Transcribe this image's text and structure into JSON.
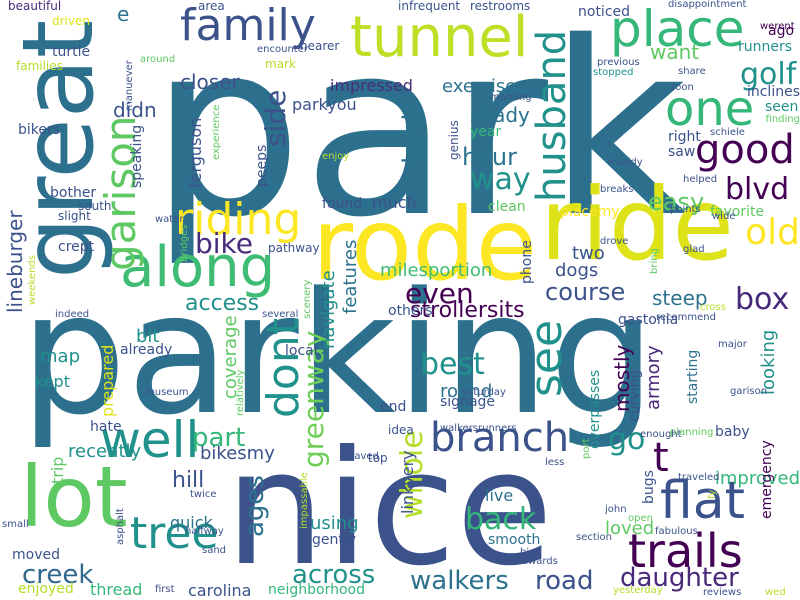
{
  "words": [
    {
      "text": "park",
      "color": "#2d708e"
    },
    {
      "text": "parking",
      "color": "#2d708e"
    },
    {
      "text": "nice",
      "color": "#3b528b"
    },
    {
      "text": "ride",
      "color": "#dde318"
    },
    {
      "text": "rode",
      "color": "#fde725"
    },
    {
      "text": "great",
      "color": "#2d708e"
    },
    {
      "text": "lot",
      "color": "#5ec962"
    },
    {
      "text": "tunnel",
      "color": "#bddf26"
    },
    {
      "text": "family",
      "color": "#3b528b"
    },
    {
      "text": "place",
      "color": "#35b779"
    },
    {
      "text": "along",
      "color": "#3fbc73"
    },
    {
      "text": "riding",
      "color": "#fde725"
    },
    {
      "text": "well",
      "color": "#21918c"
    },
    {
      "text": "one",
      "color": "#35b779"
    },
    {
      "text": "branch",
      "color": "#3b528b"
    },
    {
      "text": "flat",
      "color": "#3b528b"
    },
    {
      "text": "trails",
      "color": "#440154"
    },
    {
      "text": "tree",
      "color": "#21918c"
    },
    {
      "text": "dont",
      "color": "#21918c"
    },
    {
      "text": "husband",
      "color": "#21918c"
    },
    {
      "text": "garison",
      "color": "#5ec962"
    },
    {
      "text": "good",
      "color": "#440154"
    },
    {
      "text": "see",
      "color": "#21918c"
    },
    {
      "text": "golf",
      "color": "#21918c"
    },
    {
      "text": "blvd",
      "color": "#440154"
    },
    {
      "text": "old",
      "color": "#fde725"
    },
    {
      "text": "way",
      "color": "#21918c"
    },
    {
      "text": "hour",
      "color": "#2c728e"
    },
    {
      "text": "birds",
      "color": "#2c728e"
    },
    {
      "text": "side",
      "color": "#3b528b"
    },
    {
      "text": "bike",
      "color": "#472d7b"
    },
    {
      "text": "even",
      "color": "#440154"
    },
    {
      "text": "course",
      "color": "#3b528b"
    },
    {
      "text": "box",
      "color": "#482878"
    },
    {
      "text": "easy",
      "color": "#5ec962"
    },
    {
      "text": "steep",
      "color": "#2c728e"
    },
    {
      "text": "access",
      "color": "#21918c"
    },
    {
      "text": "best",
      "color": "#21918c"
    },
    {
      "text": "whole",
      "color": "#b5de2b"
    },
    {
      "text": "creek",
      "color": "#31688e"
    },
    {
      "text": "across",
      "color": "#21918c"
    },
    {
      "text": "walkers",
      "color": "#2c728e"
    },
    {
      "text": "road",
      "color": "#3b528b"
    },
    {
      "text": "daughter",
      "color": "#482878"
    },
    {
      "text": "back",
      "color": "#35b779"
    },
    {
      "text": "ages",
      "color": "#2c728e"
    },
    {
      "text": "greenway",
      "color": "#6ece58"
    },
    {
      "text": "part",
      "color": "#35b779"
    },
    {
      "text": "go",
      "color": "#21918c"
    },
    {
      "text": "t",
      "color": "#440154"
    },
    {
      "text": "hill",
      "color": "#3b528b"
    },
    {
      "text": "lineburger",
      "color": "#3b528b"
    },
    {
      "text": "closer",
      "color": "#3b528b"
    },
    {
      "text": "didn",
      "color": "#3b528b"
    },
    {
      "text": "want",
      "color": "#5ec962"
    },
    {
      "text": "exercise",
      "color": "#2c728e"
    },
    {
      "text": "impressed",
      "color": "#472d7b"
    },
    {
      "text": "parkyou",
      "color": "#3b528b"
    },
    {
      "text": "shady",
      "color": "#2c728e"
    },
    {
      "text": "strollersits",
      "color": "#440154"
    },
    {
      "text": "milesportion",
      "color": "#3fbc73"
    },
    {
      "text": "navigate",
      "color": "#21918c"
    },
    {
      "text": "features",
      "color": "#2c728e"
    },
    {
      "text": "two",
      "color": "#3b528b"
    },
    {
      "text": "dogs",
      "color": "#3b528b"
    },
    {
      "text": "much",
      "color": "#3b528b"
    },
    {
      "text": "found",
      "color": "#3b528b"
    },
    {
      "text": "bit",
      "color": "#21918c"
    },
    {
      "text": "map",
      "color": "#21918c"
    },
    {
      "text": "kept",
      "color": "#21918c"
    },
    {
      "text": "coverage",
      "color": "#5ec962"
    },
    {
      "text": "bikesmy",
      "color": "#3b528b"
    },
    {
      "text": "quick",
      "color": "#2c728e"
    },
    {
      "text": "using",
      "color": "#21918c"
    },
    {
      "text": "mostly",
      "color": "#440154"
    },
    {
      "text": "armory",
      "color": "#482878"
    },
    {
      "text": "looking",
      "color": "#21918c"
    },
    {
      "text": "improved",
      "color": "#35b779"
    },
    {
      "text": "loved",
      "color": "#5ec962"
    },
    {
      "text": "live",
      "color": "#2c728e"
    },
    {
      "text": "round",
      "color": "#2c728e"
    },
    {
      "text": "e",
      "color": "#2c728e"
    },
    {
      "text": "ferguson",
      "color": "#3b528b"
    },
    {
      "text": "peeps",
      "color": "#3b528b"
    },
    {
      "text": "speaking",
      "color": "#3b528b"
    },
    {
      "text": "thread",
      "color": "#35b779"
    },
    {
      "text": "carolina",
      "color": "#3b528b"
    },
    {
      "text": "enjoyed",
      "color": "#b5de2b"
    },
    {
      "text": "neighborhood",
      "color": "#35b779"
    },
    {
      "text": "moved",
      "color": "#3b528b"
    },
    {
      "text": "trip",
      "color": "#5ec962"
    },
    {
      "text": "recently",
      "color": "#21918c"
    },
    {
      "text": "hate",
      "color": "#3b528b"
    },
    {
      "text": "prepared",
      "color": "#dde318"
    },
    {
      "text": "already",
      "color": "#3b528b"
    },
    {
      "text": "local",
      "color": "#3b528b"
    },
    {
      "text": "end",
      "color": "#3b528b"
    },
    {
      "text": "overpasses",
      "color": "#21918c"
    },
    {
      "text": "signage",
      "color": "#3b528b"
    },
    {
      "text": "others",
      "color": "#3b528b"
    },
    {
      "text": "linkvery",
      "color": "#3b528b"
    },
    {
      "text": "gently",
      "color": "#3b528b"
    },
    {
      "text": "smooth",
      "color": "#2c728e"
    },
    {
      "text": "baby",
      "color": "#3b528b"
    },
    {
      "text": "emergency",
      "color": "#440154"
    },
    {
      "text": "bugs",
      "color": "#3b528b"
    },
    {
      "text": "curving",
      "color": "#3b528b"
    },
    {
      "text": "starting",
      "color": "#2c728e"
    },
    {
      "text": "gastonia",
      "color": "#3b528b"
    },
    {
      "text": "placemy",
      "color": "#fde725"
    },
    {
      "text": "favorite",
      "color": "#5ec962"
    },
    {
      "text": "clean",
      "color": "#5ec962"
    },
    {
      "text": "phone",
      "color": "#3b528b"
    },
    {
      "text": "genius",
      "color": "#3b528b"
    },
    {
      "text": "year",
      "color": "#35b779"
    },
    {
      "text": "saw",
      "color": "#3b528b"
    },
    {
      "text": "right",
      "color": "#3b528b"
    },
    {
      "text": "runners",
      "color": "#21918c"
    },
    {
      "text": "inclines",
      "color": "#3b528b"
    },
    {
      "text": "seen",
      "color": "#21918c"
    },
    {
      "text": "ago",
      "color": "#440154"
    },
    {
      "text": "families",
      "color": "#b5de2b"
    },
    {
      "text": "turtle",
      "color": "#3b528b"
    },
    {
      "text": "bikers",
      "color": "#3b528b"
    },
    {
      "text": "bother",
      "color": "#3b528b"
    },
    {
      "text": "south",
      "color": "#3b528b"
    },
    {
      "text": "slight",
      "color": "#3b528b"
    },
    {
      "text": "crept",
      "color": "#3b528b"
    },
    {
      "text": "pathway",
      "color": "#3b528b"
    },
    {
      "text": "noticed",
      "color": "#3b528b"
    },
    {
      "text": "beautiful",
      "color": "#472d7b"
    },
    {
      "text": "driven",
      "color": "#dde318"
    },
    {
      "text": "area",
      "color": "#3b528b"
    },
    {
      "text": "infrequent",
      "color": "#3b528b"
    },
    {
      "text": "restrooms",
      "color": "#3b528b"
    },
    {
      "text": "disappointment",
      "color": "#3b528b"
    },
    {
      "text": "werent",
      "color": "#440154"
    },
    {
      "text": "nearer",
      "color": "#3b528b"
    },
    {
      "text": "encounter",
      "color": "#3b528b"
    },
    {
      "text": "mark",
      "color": "#b5de2b"
    },
    {
      "text": "around",
      "color": "#5ec962"
    },
    {
      "text": "manuever",
      "color": "#3b528b"
    },
    {
      "text": "previous",
      "color": "#3b528b"
    },
    {
      "text": "stopped",
      "color": "#21918c"
    },
    {
      "text": "share",
      "color": "#3b528b"
    },
    {
      "text": "soon",
      "color": "#3b528b"
    },
    {
      "text": "finding",
      "color": "#5ec962"
    },
    {
      "text": "schiele",
      "color": "#3b528b"
    },
    {
      "text": "morning",
      "color": "#3b528b"
    },
    {
      "text": "muddy",
      "color": "#3b528b"
    },
    {
      "text": "helped",
      "color": "#3b528b"
    },
    {
      "text": "breaks",
      "color": "#3b528b"
    },
    {
      "text": "points",
      "color": "#3b528b"
    },
    {
      "text": "wide",
      "color": "#3b528b"
    },
    {
      "text": "drove",
      "color": "#3b528b"
    },
    {
      "text": "glad",
      "color": "#3b528b"
    },
    {
      "text": "bring",
      "color": "#5ec962"
    },
    {
      "text": "recommend",
      "color": "#3b528b"
    },
    {
      "text": "cross",
      "color": "#b5de2b"
    },
    {
      "text": "major",
      "color": "#3b528b"
    },
    {
      "text": "garison",
      "color": "#3b528b"
    },
    {
      "text": "planning",
      "color": "#5ec962"
    },
    {
      "text": "enought",
      "color": "#3b528b"
    },
    {
      "text": "traveled",
      "color": "#3b528b"
    },
    {
      "text": "fabulous",
      "color": "#3b528b"
    },
    {
      "text": "open",
      "color": "#5ec962"
    },
    {
      "text": "john",
      "color": "#3b528b"
    },
    {
      "text": "section",
      "color": "#3b528b"
    },
    {
      "text": "yesterday",
      "color": "#b5de2b"
    },
    {
      "text": "reviews",
      "color": "#3b528b"
    },
    {
      "text": "wed",
      "color": "#b5de2b"
    },
    {
      "text": "towards",
      "color": "#3b528b"
    },
    {
      "text": "big",
      "color": "#3b528b"
    },
    {
      "text": "less",
      "color": "#3b528b"
    },
    {
      "text": "port",
      "color": "#5ec962"
    },
    {
      "text": "idea",
      "color": "#3b528b"
    },
    {
      "text": "walkersrunners",
      "color": "#3b528b"
    },
    {
      "text": "paved",
      "color": "#3b528b"
    },
    {
      "text": "top",
      "color": "#3b528b"
    },
    {
      "text": "saturday",
      "color": "#3b528b"
    },
    {
      "text": "relatively",
      "color": "#5ec962"
    },
    {
      "text": "museum",
      "color": "#3b528b"
    },
    {
      "text": "several",
      "color": "#3b528b"
    },
    {
      "text": "scenery",
      "color": "#5ec962"
    },
    {
      "text": "bridges",
      "color": "#5ec962"
    },
    {
      "text": "water",
      "color": "#3b528b"
    },
    {
      "text": "weekends",
      "color": "#b5de2b"
    },
    {
      "text": "indeed",
      "color": "#3b528b"
    },
    {
      "text": "experience",
      "color": "#5ec962"
    },
    {
      "text": "enjoy",
      "color": "#b5de2b"
    },
    {
      "text": "impassable",
      "color": "#b5de2b"
    },
    {
      "text": "halfway",
      "color": "#3b528b"
    },
    {
      "text": "twice",
      "color": "#3b528b"
    },
    {
      "text": "sand",
      "color": "#3b528b"
    },
    {
      "text": "asphalt",
      "color": "#3b528b"
    },
    {
      "text": "small",
      "color": "#3b528b"
    },
    {
      "text": "first",
      "color": "#3b528b"
    },
    {
      "text": "o",
      "color": "#3b528b"
    },
    {
      "text": "fy",
      "color": "#b5de2b"
    }
  ]
}
